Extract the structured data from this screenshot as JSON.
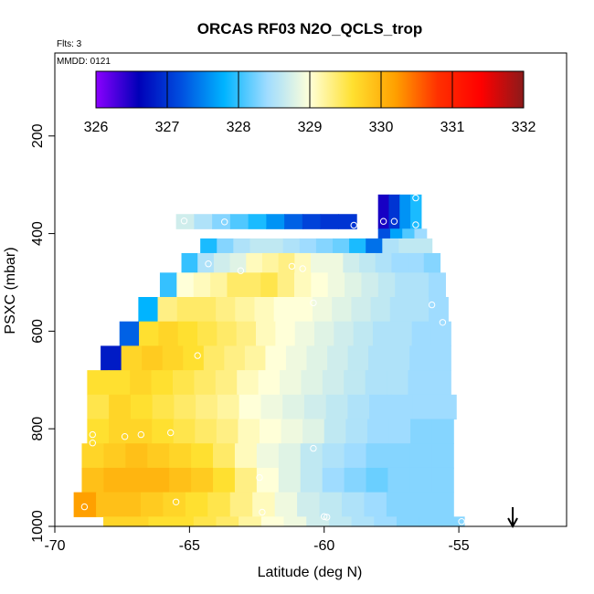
{
  "chart_data": {
    "type": "heatmap",
    "title": "ORCAS RF03 N2O_QCLS_trop",
    "subtitle_flights": "Flts: 3",
    "subtitle_date": "MMDD: 0121",
    "xlabel": "Latitude (deg N)",
    "ylabel": "PSXC (mbar)",
    "xlim": [
      -70,
      -51
    ],
    "ylim": [
      1000,
      30
    ],
    "x_ticks": [
      -70,
      -65,
      -60,
      -55
    ],
    "x_tick_labels": [
      "-70",
      "-65",
      "-60",
      "-55"
    ],
    "y_ticks": [
      200,
      400,
      600,
      800,
      1000
    ],
    "y_tick_labels": [
      "200",
      "400",
      "600",
      "800",
      "1000"
    ],
    "colorbar": {
      "min": 326,
      "max": 332,
      "ticks": [
        326,
        327,
        328,
        329,
        330,
        331,
        332
      ],
      "tick_labels": [
        "326",
        "327",
        "328",
        "329",
        "330",
        "331",
        "332"
      ],
      "stops": [
        "#8b00ff",
        "#0000b8",
        "#0050e0",
        "#00b4ff",
        "#9fdcff",
        "#ffffd8",
        "#ffe030",
        "#ffa000",
        "#ff3000",
        "#ff0000",
        "#8b1a1a"
      ]
    },
    "series": [
      {
        "name": "N2O_QCLS_trop",
        "rows": [
          {
            "p_top": 360,
            "p_bot": 390,
            "lat_start": -65.5,
            "lat_end": -58.8,
            "values": [
              328.7,
              328.5,
              328.3,
              328.1,
              327.9,
              327.6,
              327.3,
              327.1,
              327.0,
              327.0
            ]
          },
          {
            "p_top": 320,
            "p_bot": 390,
            "lat_start": -58.0,
            "lat_end": -56.4,
            "values": [
              326.5,
              327.0,
              327.6,
              327.9
            ]
          },
          {
            "p_top": 390,
            "p_bot": 410,
            "lat_start": -58.0,
            "lat_end": -56.2,
            "values": [
              327.2,
              327.7,
              328.1,
              328.4
            ]
          },
          {
            "p_top": 410,
            "p_bot": 440,
            "lat_start": -64.6,
            "lat_end": -56.0,
            "values": [
              327.9,
              328.3,
              328.5,
              328.6,
              328.6,
              328.5,
              328.4,
              328.3,
              328.2,
              327.9,
              327.4,
              328.5,
              328.6,
              328.6
            ]
          },
          {
            "p_top": 440,
            "p_bot": 480,
            "lat_start": -65.3,
            "lat_end": -55.7,
            "values": [
              328.0,
              328.5,
              328.7,
              328.8,
              329.1,
              329.2,
              329.3,
              329.1,
              328.9,
              328.9,
              328.7,
              328.6,
              328.5,
              328.4,
              328.4,
              328.3
            ]
          },
          {
            "p_top": 480,
            "p_bot": 530,
            "lat_start": -66.1,
            "lat_end": -55.5,
            "values": [
              328.0,
              329.0,
              329.1,
              329.2,
              329.4,
              329.4,
              329.5,
              329.3,
              329.1,
              329.0,
              328.9,
              328.8,
              328.7,
              328.6,
              328.5,
              328.5,
              328.4
            ]
          },
          {
            "p_top": 530,
            "p_bot": 580,
            "lat_start": -66.9,
            "lat_end": -55.4,
            "values": [
              327.8,
              329.3,
              329.4,
              329.4,
              329.3,
              329.2,
              329.1,
              329.0,
              329.0,
              328.9,
              328.8,
              328.7,
              328.6,
              328.5,
              328.5,
              328.4
            ]
          },
          {
            "p_top": 580,
            "p_bot": 630,
            "lat_start": -67.6,
            "lat_end": -55.3,
            "values": [
              327.3,
              329.6,
              329.7,
              329.6,
              329.5,
              329.4,
              329.3,
              329.1,
              329.0,
              328.9,
              328.8,
              328.7,
              328.6,
              328.5,
              328.5,
              328.4,
              328.4
            ]
          },
          {
            "p_top": 630,
            "p_bot": 680,
            "lat_start": -68.3,
            "lat_end": -55.3,
            "values": [
              326.8,
              329.7,
              329.8,
              329.7,
              329.6,
              329.4,
              329.3,
              329.2,
              329.0,
              328.9,
              328.8,
              328.7,
              328.6,
              328.5,
              328.5,
              328.4,
              328.4
            ]
          },
          {
            "p_top": 680,
            "p_bot": 730,
            "lat_start": -68.8,
            "lat_end": -55.3,
            "values": [
              329.6,
              329.6,
              329.7,
              329.6,
              329.5,
              329.4,
              329.3,
              329.1,
              329.0,
              328.9,
              328.8,
              328.7,
              328.6,
              328.5,
              328.5,
              328.4,
              328.4
            ]
          },
          {
            "p_top": 730,
            "p_bot": 780,
            "lat_start": -68.8,
            "lat_end": -55.1,
            "values": [
              329.5,
              329.7,
              329.6,
              329.5,
              329.4,
              329.3,
              329.2,
              329.0,
              328.9,
              328.8,
              328.7,
              328.6,
              328.5,
              328.4,
              328.4,
              328.4,
              328.4
            ]
          },
          {
            "p_top": 780,
            "p_bot": 830,
            "lat_start": -68.8,
            "lat_end": -55.2,
            "values": [
              329.6,
              329.7,
              329.7,
              329.6,
              329.5,
              329.4,
              329.3,
              329.1,
              329.0,
              328.9,
              328.8,
              328.6,
              328.5,
              328.4,
              328.4,
              328.3,
              328.3
            ]
          },
          {
            "p_top": 830,
            "p_bot": 880,
            "lat_start": -69.0,
            "lat_end": -55.2,
            "values": [
              329.7,
              329.8,
              329.9,
              329.8,
              329.7,
              329.6,
              329.4,
              329.1,
              328.9,
              328.8,
              328.6,
              328.5,
              328.4,
              328.3,
              328.3,
              328.3,
              328.3
            ]
          },
          {
            "p_top": 880,
            "p_bot": 930,
            "lat_start": -69.0,
            "lat_end": -55.2,
            "values": [
              329.9,
              330.0,
              330.0,
              330.0,
              329.9,
              329.8,
              329.6,
              329.3,
              329.0,
              328.8,
              328.6,
              328.4,
              328.3,
              328.2,
              328.3,
              328.3,
              328.3
            ]
          },
          {
            "p_top": 930,
            "p_bot": 980,
            "lat_start": -69.3,
            "lat_end": -55.2,
            "values": [
              330.2,
              329.9,
              329.9,
              329.8,
              329.7,
              329.6,
              329.5,
              329.3,
              329.1,
              328.9,
              328.7,
              328.6,
              328.5,
              328.4,
              328.3,
              328.3,
              328.3
            ]
          },
          {
            "p_top": 980,
            "p_bot": 1000,
            "lat_start": -68.2,
            "lat_end": -54.8,
            "values": [
              329.7,
              329.7,
              329.6,
              329.6,
              329.5,
              329.4,
              329.2,
              329.0,
              328.9,
              328.7,
              328.6,
              328.5,
              328.4,
              328.3,
              328.3,
              328.3
            ]
          }
        ]
      },
      {
        "name": "sample_points",
        "points": [
          {
            "lat": -65.2,
            "p": 374
          },
          {
            "lat": -63.7,
            "p": 376
          },
          {
            "lat": -58.9,
            "p": 383
          },
          {
            "lat": -57.8,
            "p": 375
          },
          {
            "lat": -57.4,
            "p": 375
          },
          {
            "lat": -56.6,
            "p": 382
          },
          {
            "lat": -56.6,
            "p": 327
          },
          {
            "lat": -64.3,
            "p": 462
          },
          {
            "lat": -63.1,
            "p": 476
          },
          {
            "lat": -61.2,
            "p": 467
          },
          {
            "lat": -60.8,
            "p": 472
          },
          {
            "lat": -60.4,
            "p": 542
          },
          {
            "lat": -56.0,
            "p": 546
          },
          {
            "lat": -55.6,
            "p": 582
          },
          {
            "lat": -64.7,
            "p": 650
          },
          {
            "lat": -68.6,
            "p": 812
          },
          {
            "lat": -68.6,
            "p": 829
          },
          {
            "lat": -67.4,
            "p": 816
          },
          {
            "lat": -66.8,
            "p": 812
          },
          {
            "lat": -65.7,
            "p": 808
          },
          {
            "lat": -60.4,
            "p": 840
          },
          {
            "lat": -62.4,
            "p": 900
          },
          {
            "lat": -65.5,
            "p": 950
          },
          {
            "lat": -68.9,
            "p": 960
          },
          {
            "lat": -62.3,
            "p": 971
          },
          {
            "lat": -60.0,
            "p": 980
          },
          {
            "lat": -59.9,
            "p": 981
          },
          {
            "lat": -54.9,
            "p": 990
          }
        ]
      }
    ],
    "arrow_marker": {
      "lat": -53.0,
      "direction": "down"
    }
  }
}
